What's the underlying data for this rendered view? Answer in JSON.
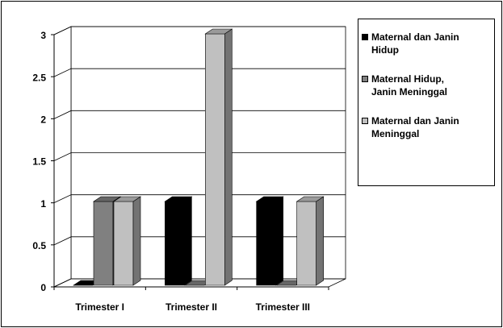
{
  "chart_data": {
    "type": "bar3d",
    "categories": [
      "Trimester I",
      "Trimester II",
      "Trimester III"
    ],
    "series": [
      {
        "name": "Maternal dan Janin Hidup",
        "color": "#000000",
        "values": [
          0,
          1,
          1
        ]
      },
      {
        "name": "Maternal Hidup, Janin Meninggal",
        "color": "#808080",
        "values": [
          1,
          0,
          0
        ]
      },
      {
        "name": "Maternal dan Janin Meninggal",
        "color": "#c0c0c0",
        "values": [
          1,
          3,
          1
        ]
      }
    ],
    "ylim": [
      0,
      3
    ],
    "yticks": [
      0,
      0.5,
      1,
      1.5,
      2,
      2.5,
      3
    ],
    "grid": true,
    "legend": "right"
  }
}
